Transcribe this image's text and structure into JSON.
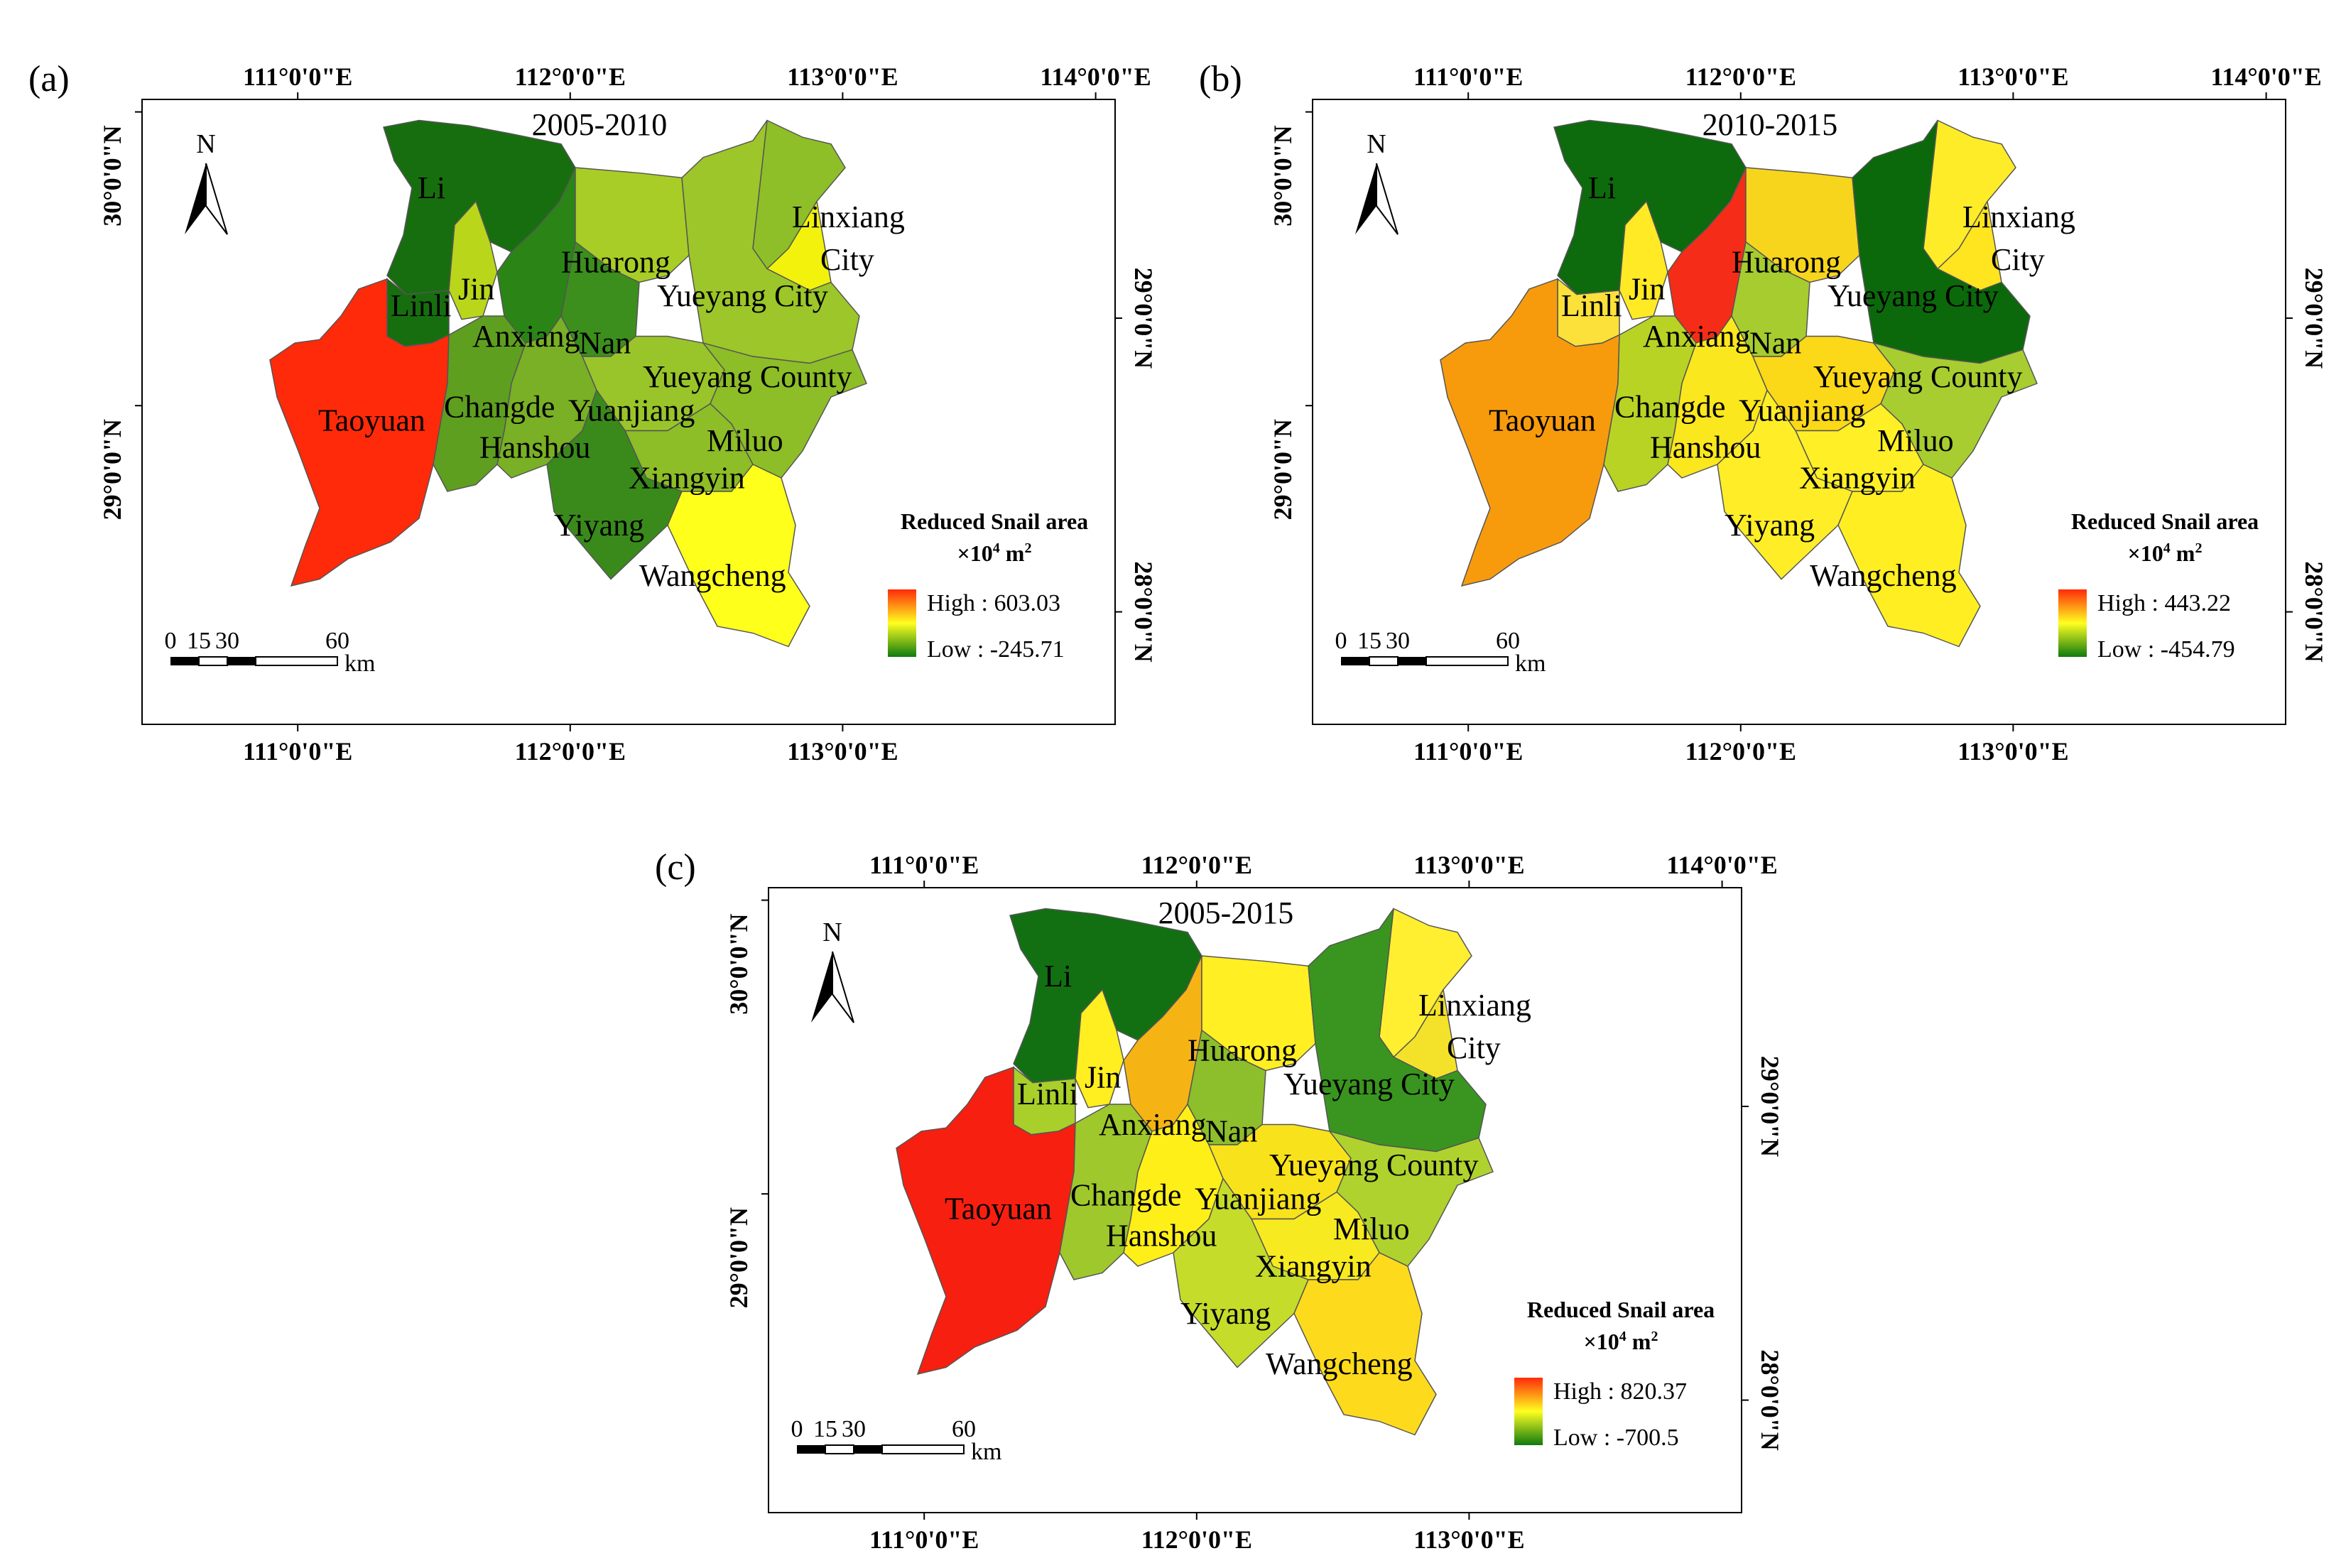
{
  "figure": {
    "panels": [
      {
        "tag": "(a)",
        "period": "2005-2010",
        "legend": {
          "title": "Reduced Snail area",
          "unit_main": "×10",
          "unit_exp": "4",
          "unit_tail": " m",
          "unit_exp2": "2",
          "high": "High : 603.03",
          "low": "Low : -245.71"
        },
        "top_lon_labels": [
          "111°0'0\"E",
          "112°0'0\"E",
          "113°0'0\"E",
          "114°0'0\"E"
        ],
        "bottom_lon_labels": [
          "111°0'0\"E",
          "112°0'0\"E",
          "113°0'0\"E"
        ],
        "left_lat_labels": [
          "30°0'0\"N",
          "29°0'0\"N"
        ],
        "right_lat_labels": [
          "29°0'0\"N",
          "28°0'0\"N"
        ],
        "regions": [
          {
            "name": "Li",
            "color": "#176e0f"
          },
          {
            "name": "Linli",
            "color": "#176e0f"
          },
          {
            "name": "Jin",
            "color": "#b9d61a"
          },
          {
            "name": "Anxiang",
            "color": "#2a8516"
          },
          {
            "name": "Nan",
            "color": "#3c8f1c"
          },
          {
            "name": "Huarong",
            "color": "#a8cd26"
          },
          {
            "name": "Yueyang City",
            "color": "#f2f20c"
          },
          {
            "name": "Linxiang City",
            "color": "#8ebf28"
          },
          {
            "name": "Yueyang County",
            "color": "#9cc629"
          },
          {
            "name": "Taoyuan",
            "color": "#ff2a0a"
          },
          {
            "name": "Changde",
            "color": "#5f9f20"
          },
          {
            "name": "Hanshou",
            "color": "#79b025"
          },
          {
            "name": "Yuanjiang",
            "color": "#99c52a"
          },
          {
            "name": "Miluo",
            "color": "#8dbd27"
          },
          {
            "name": "Xiangyin",
            "color": "#8dbd27"
          },
          {
            "name": "Yiyang",
            "color": "#3a8a1b"
          },
          {
            "name": "Wangcheng",
            "color": "#ffff1c"
          }
        ]
      },
      {
        "tag": "(b)",
        "period": "2010-2015",
        "legend": {
          "title": "Reduced Snail area",
          "unit_main": "×10",
          "unit_exp": "4",
          "unit_tail": " m",
          "unit_exp2": "2",
          "high": "High : 443.22",
          "low": "Low : -454.79"
        },
        "top_lon_labels": [
          "111°0'0\"E",
          "112°0'0\"E",
          "113°0'0\"E",
          "114°0'0\"E"
        ],
        "bottom_lon_labels": [
          "111°0'0\"E",
          "112°0'0\"E",
          "113°0'0\"E"
        ],
        "left_lat_labels": [
          "30°0'0\"N",
          "29°0'0\"N"
        ],
        "right_lat_labels": [
          "29°0'0\"N",
          "28°0'0\"N"
        ],
        "regions": [
          {
            "name": "Li",
            "color": "#0d6a0d"
          },
          {
            "name": "Linli",
            "color": "#fbe13a"
          },
          {
            "name": "Jin",
            "color": "#ffea25"
          },
          {
            "name": "Anxiang",
            "color": "#f52c18"
          },
          {
            "name": "Nan",
            "color": "#a6cc2f"
          },
          {
            "name": "Huarong",
            "color": "#f7d51d"
          },
          {
            "name": "Yueyang City",
            "color": "#ffe51f"
          },
          {
            "name": "Linxiang City",
            "color": "#ffec28"
          },
          {
            "name": "Yueyang County",
            "color": "#0b690b"
          },
          {
            "name": "Taoyuan",
            "color": "#f79b0d"
          },
          {
            "name": "Changde",
            "color": "#b8d324"
          },
          {
            "name": "Hanshou",
            "color": "#fbe71d"
          },
          {
            "name": "Yuanjiang",
            "color": "#fbd818"
          },
          {
            "name": "Miluo",
            "color": "#a8cd30"
          },
          {
            "name": "Xiangyin",
            "color": "#ffef26"
          },
          {
            "name": "Yiyang",
            "color": "#ffee27"
          },
          {
            "name": "Wangcheng",
            "color": "#ffef22"
          }
        ]
      },
      {
        "tag": "(c)",
        "period": "2005-2015",
        "legend": {
          "title": "Reduced Snail area",
          "unit_main": "×10",
          "unit_exp": "4",
          "unit_tail": " m",
          "unit_exp2": "2",
          "high": "High : 820.37",
          "low": "Low : -700.5"
        },
        "top_lon_labels": [
          "111°0'0\"E",
          "112°0'0\"E",
          "113°0'0\"E",
          "114°0'0\"E"
        ],
        "bottom_lon_labels": [
          "111°0'0\"E",
          "112°0'0\"E",
          "113°0'0\"E"
        ],
        "left_lat_labels": [
          "30°0'0\"N",
          "29°0'0\"N"
        ],
        "right_lat_labels": [
          "29°0'0\"N",
          "28°0'0\"N"
        ],
        "regions": [
          {
            "name": "Li",
            "color": "#127012"
          },
          {
            "name": "Linli",
            "color": "#a8cf2a"
          },
          {
            "name": "Jin",
            "color": "#ffee20"
          },
          {
            "name": "Anxiang",
            "color": "#f6b414"
          },
          {
            "name": "Nan",
            "color": "#8dbe2c"
          },
          {
            "name": "Huarong",
            "color": "#ffef23"
          },
          {
            "name": "Yueyang City",
            "color": "#f4e22a"
          },
          {
            "name": "Linxiang City",
            "color": "#ffef30"
          },
          {
            "name": "Yueyang County",
            "color": "#39951f"
          },
          {
            "name": "Taoyuan",
            "color": "#f71f10"
          },
          {
            "name": "Changde",
            "color": "#9fc82c"
          },
          {
            "name": "Hanshou",
            "color": "#ffef18"
          },
          {
            "name": "Yuanjiang",
            "color": "#f8e21b"
          },
          {
            "name": "Miluo",
            "color": "#b0d22e"
          },
          {
            "name": "Xiangyin",
            "color": "#f7ea20"
          },
          {
            "name": "Yiyang",
            "color": "#c5dc2b"
          },
          {
            "name": "Wangcheng",
            "color": "#fddb1c"
          }
        ]
      }
    ],
    "north_label": "N",
    "scalebar": {
      "ticks": [
        "0",
        "15",
        "30",
        "60"
      ],
      "unit": "km"
    }
  }
}
